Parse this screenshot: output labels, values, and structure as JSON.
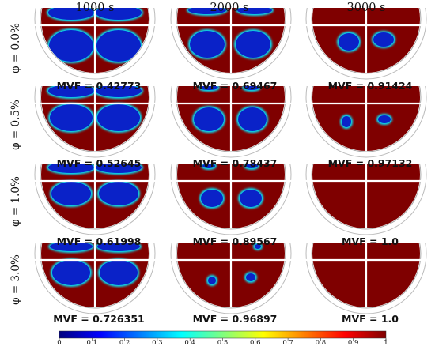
{
  "columns": [
    "1000 s",
    "2000 s",
    "3000 s"
  ],
  "rows": [
    {
      "label": "φ = 0.0%",
      "mvf": [
        "MVF = 0.42773",
        "MVF = 0.69467",
        "MVF = 0.91424"
      ]
    },
    {
      "label": "φ = 0.5%",
      "mvf": [
        "MVF = 0.52645",
        "MVF = 0.78437",
        "MVF = 0.97132"
      ]
    },
    {
      "label": "φ = 1.0%",
      "mvf": [
        "MVF = 0.61998",
        "MVF = 0.89567",
        "MVF = 1.0"
      ]
    },
    {
      "label": "φ = 3.0%",
      "mvf": [
        "MVF = 0.726351",
        "MVF = 0.96897",
        "MVF = 1.0"
      ]
    }
  ],
  "colorbar": {
    "ticks": [
      "0",
      "0.1",
      "0.2",
      "0.3",
      "0.4",
      "0.5",
      "0.6",
      "0.7",
      "0.8",
      "0.9",
      "1"
    ],
    "colors": [
      "#00007f",
      "#0000ff",
      "#007fff",
      "#00ffff",
      "#7fff7f",
      "#ffff00",
      "#ff7f00",
      "#ff0000",
      "#7f0000"
    ]
  },
  "colors": {
    "solid": "#7f0000",
    "liquid": "#0a22c8",
    "divider": "#ffffff"
  }
}
